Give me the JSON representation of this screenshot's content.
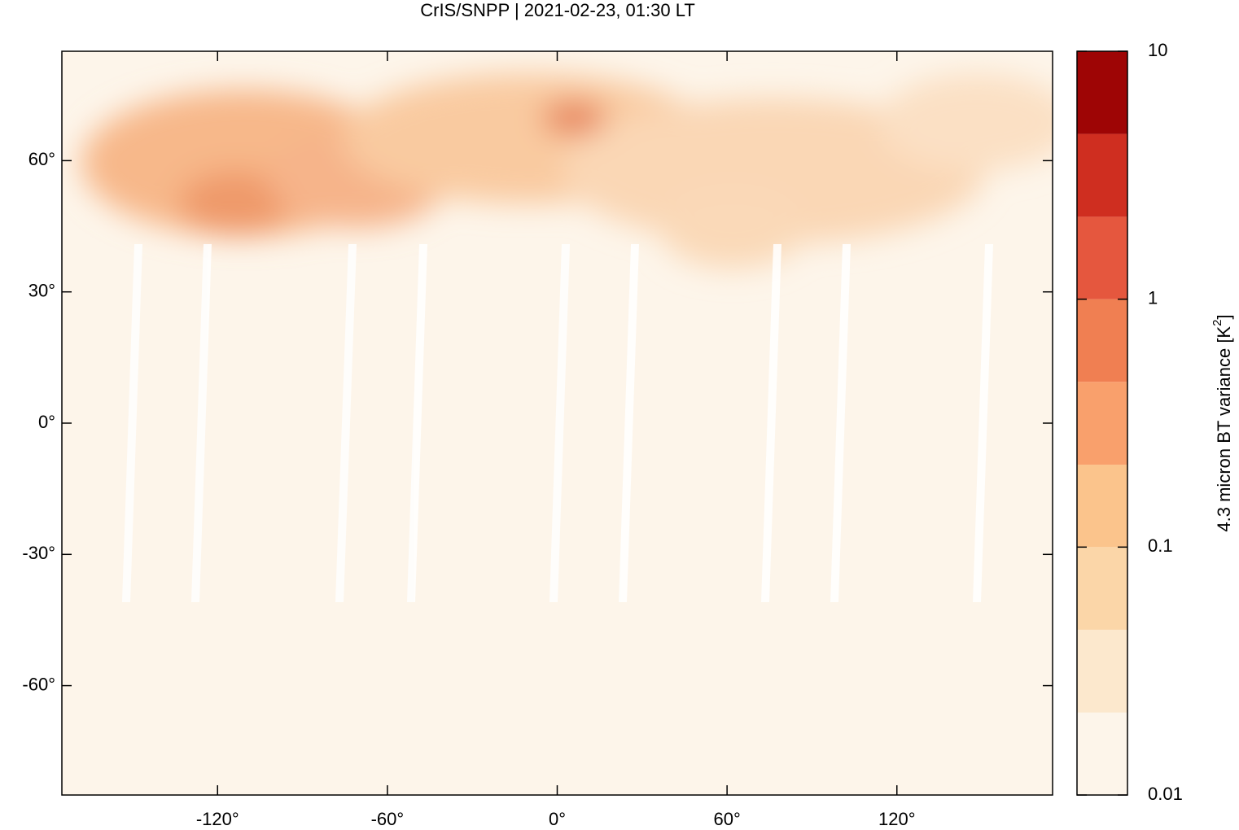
{
  "chart_data": {
    "type": "map",
    "title": "CrIS/SNPP | 2021-02-23, 01:30 LT",
    "xlim": [
      -175,
      175
    ],
    "ylim": [
      -85,
      85
    ],
    "xticks": [
      {
        "value": -120,
        "label": "-120°"
      },
      {
        "value": -60,
        "label": "-60°"
      },
      {
        "value": 0,
        "label": "0°"
      },
      {
        "value": 60,
        "label": "60°"
      },
      {
        "value": 120,
        "label": "120°"
      }
    ],
    "yticks": [
      {
        "value": 60,
        "label": "60°"
      },
      {
        "value": 30,
        "label": "30°"
      },
      {
        "value": 0,
        "label": "0°"
      },
      {
        "value": -30,
        "label": "-30°"
      },
      {
        "value": -60,
        "label": "-60°"
      }
    ],
    "colorbar": {
      "label": [
        "4.3 micron BT variance [K",
        "2",
        "]"
      ],
      "log_scale": true,
      "lim": [
        0.01,
        10
      ],
      "ticks": [
        0.01,
        0.1,
        1,
        10
      ],
      "levels": [
        0.01,
        0.0215,
        0.0464,
        0.1,
        0.215,
        0.464,
        1,
        2.15,
        4.64,
        10
      ],
      "colors": [
        "#fdf5ea",
        "#fce8cd",
        "#fbd6a8",
        "#fbc48c",
        "#f9a06c",
        "#f07f52",
        "#e5573e",
        "#cf2e20",
        "#9e0505"
      ]
    }
  }
}
